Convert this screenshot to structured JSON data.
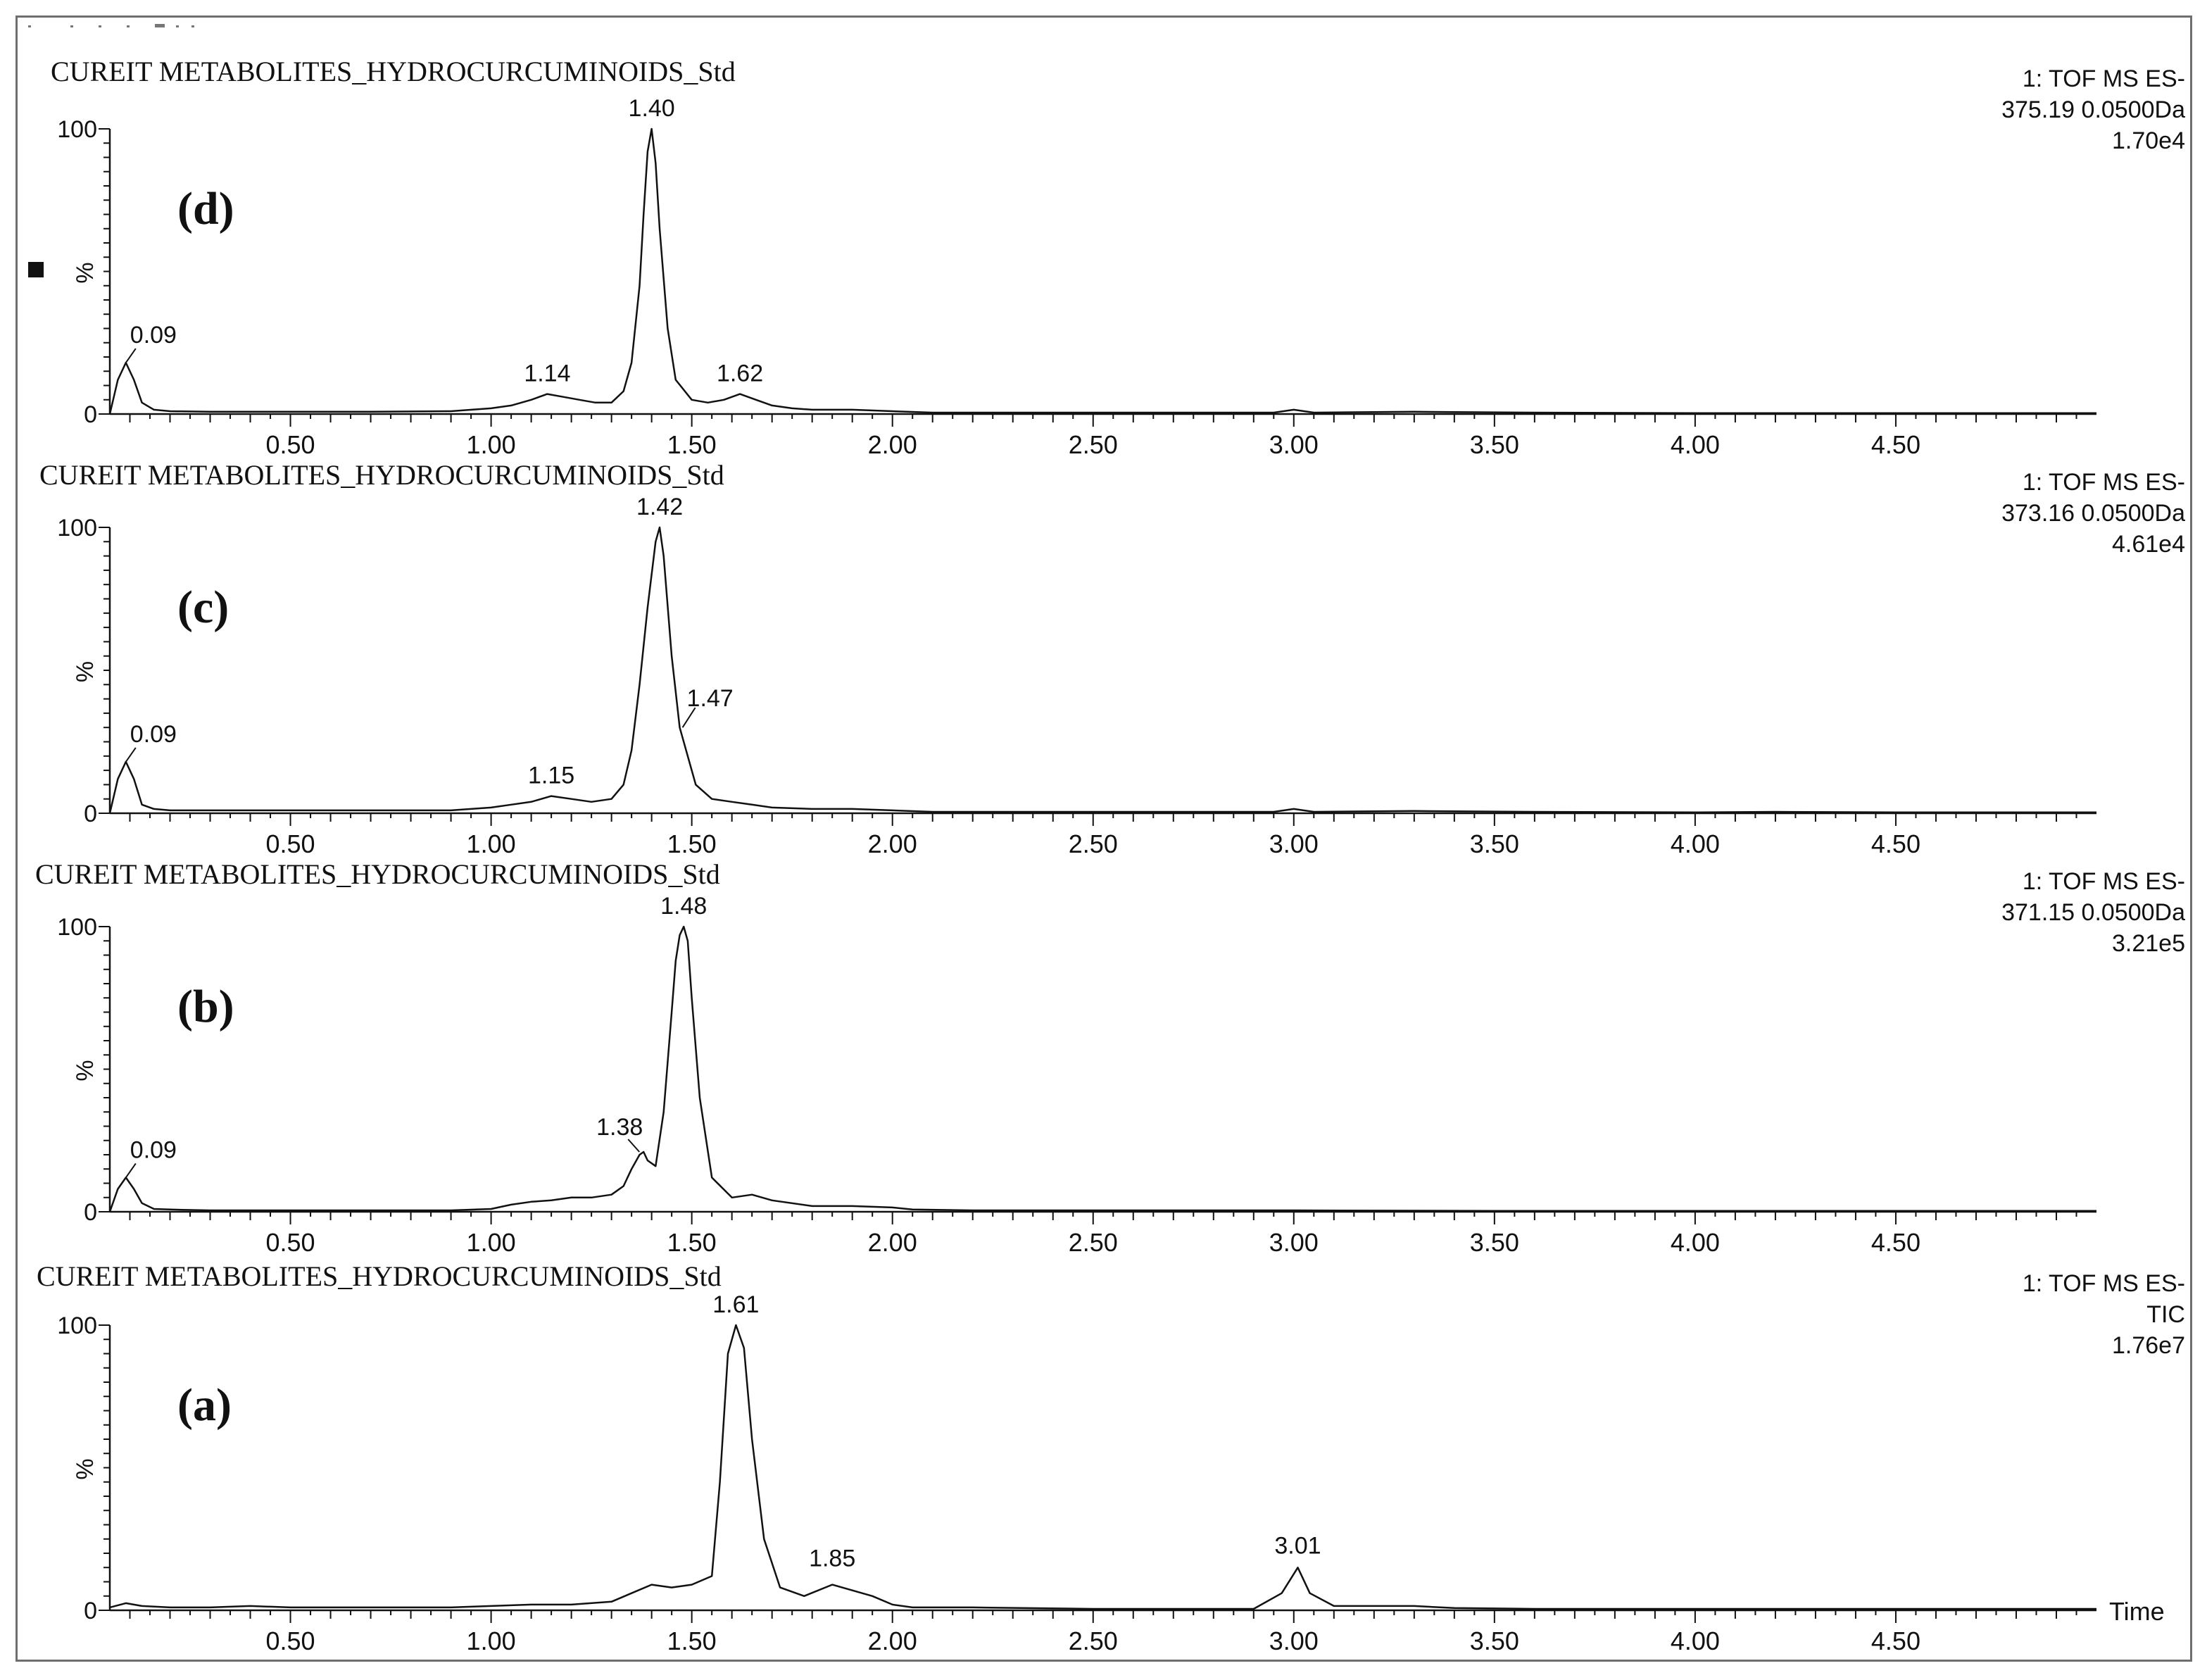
{
  "axis_text": {
    "percent": "%",
    "time": "Time"
  },
  "chart_data": [
    {
      "type": "line",
      "panel": "(d)",
      "title": "CUREIT METABOLITES_HYDROCURCUMINOIDS_Std",
      "info": [
        "1: TOF MS ES-",
        "375.19 0.0500Da",
        "1.70e4"
      ],
      "ylabel": "%",
      "xlabel": "",
      "xlim": [
        0.05,
        5.0
      ],
      "ylim": [
        0,
        100
      ],
      "xticks": [
        "0.50",
        "1.00",
        "1.50",
        "2.00",
        "2.50",
        "3.00",
        "3.50",
        "4.00",
        "4.50"
      ],
      "yticks": [
        "100",
        "0"
      ],
      "peak_labels": [
        {
          "text": "0.09",
          "x": 0.09,
          "y": 18
        },
        {
          "text": "1.14",
          "x": 1.14,
          "y": 7
        },
        {
          "text": "1.40",
          "x": 1.4,
          "y": 100
        },
        {
          "text": "1.62",
          "x": 1.62,
          "y": 7
        }
      ],
      "series": [
        {
          "x": [
            0.05,
            0.07,
            0.09,
            0.11,
            0.13,
            0.16,
            0.2,
            0.3,
            0.5,
            0.7,
            0.9,
            1.0,
            1.05,
            1.1,
            1.14,
            1.18,
            1.22,
            1.26,
            1.3,
            1.33,
            1.35,
            1.37,
            1.38,
            1.39,
            1.4,
            1.41,
            1.42,
            1.44,
            1.46,
            1.5,
            1.54,
            1.58,
            1.62,
            1.66,
            1.7,
            1.75,
            1.8,
            1.9,
            2.0,
            2.1,
            2.3,
            2.6,
            2.95,
            3.0,
            3.05,
            3.3,
            3.6,
            4.0,
            4.5,
            5.0
          ],
          "y": [
            0,
            12,
            18,
            12,
            4,
            1.5,
            1,
            0.8,
            0.8,
            0.8,
            1,
            2,
            3,
            5,
            7,
            6,
            5,
            4,
            4,
            8,
            18,
            45,
            70,
            92,
            100,
            88,
            65,
            30,
            12,
            5,
            4,
            5,
            7,
            5,
            3,
            2,
            1.5,
            1.5,
            1,
            0.5,
            0.5,
            0.5,
            0.5,
            1.5,
            0.5,
            0.8,
            0.5,
            0.3,
            0.3,
            0.3
          ]
        }
      ]
    },
    {
      "type": "line",
      "panel": "(c)",
      "title": "CUREIT METABOLITES_HYDROCURCUMINOIDS_Std",
      "info": [
        "1: TOF MS ES-",
        "373.16 0.0500Da",
        "4.61e4"
      ],
      "ylabel": "%",
      "xlabel": "",
      "xlim": [
        0.05,
        5.0
      ],
      "ylim": [
        0,
        100
      ],
      "xticks": [
        "0.50",
        "1.00",
        "1.50",
        "2.00",
        "2.50",
        "3.00",
        "3.50",
        "4.00",
        "4.50"
      ],
      "yticks": [
        "100",
        "0"
      ],
      "peak_labels": [
        {
          "text": "0.09",
          "x": 0.09,
          "y": 18
        },
        {
          "text": "1.15",
          "x": 1.15,
          "y": 6
        },
        {
          "text": "1.42",
          "x": 1.42,
          "y": 100
        },
        {
          "text": "1.47",
          "x": 1.47,
          "y": 30
        }
      ],
      "series": [
        {
          "x": [
            0.05,
            0.07,
            0.09,
            0.11,
            0.13,
            0.16,
            0.2,
            0.3,
            0.5,
            0.7,
            0.9,
            1.0,
            1.05,
            1.1,
            1.15,
            1.2,
            1.25,
            1.3,
            1.33,
            1.35,
            1.37,
            1.39,
            1.41,
            1.42,
            1.43,
            1.45,
            1.47,
            1.49,
            1.51,
            1.55,
            1.6,
            1.65,
            1.7,
            1.8,
            1.9,
            2.0,
            2.1,
            2.3,
            2.6,
            2.95,
            3.0,
            3.05,
            3.3,
            3.6,
            4.0,
            4.2,
            4.5,
            5.0
          ],
          "y": [
            0,
            12,
            18,
            12,
            3,
            1.5,
            1,
            1,
            1,
            1,
            1,
            2,
            3,
            4,
            6,
            5,
            4,
            5,
            10,
            22,
            45,
            72,
            95,
            100,
            90,
            55,
            30,
            20,
            10,
            5,
            4,
            3,
            2,
            1.5,
            1.5,
            1,
            0.5,
            0.5,
            0.5,
            0.5,
            1.5,
            0.5,
            0.8,
            0.5,
            0.3,
            0.5,
            0.3,
            0.3
          ]
        }
      ]
    },
    {
      "type": "line",
      "panel": "(b)",
      "title": "CUREIT METABOLITES_HYDROCURCUMINOIDS_Std",
      "info": [
        "1: TOF MS ES-",
        "371.15 0.0500Da",
        "3.21e5"
      ],
      "ylabel": "%",
      "xlabel": "",
      "xlim": [
        0.05,
        5.0
      ],
      "ylim": [
        0,
        100
      ],
      "xticks": [
        "0.50",
        "1.00",
        "1.50",
        "2.00",
        "2.50",
        "3.00",
        "3.50",
        "4.00",
        "4.50"
      ],
      "yticks": [
        "100",
        "0"
      ],
      "peak_labels": [
        {
          "text": "0.09",
          "x": 0.09,
          "y": 12
        },
        {
          "text": "1.38",
          "x": 1.38,
          "y": 20
        },
        {
          "text": "1.48",
          "x": 1.48,
          "y": 100
        }
      ],
      "series": [
        {
          "x": [
            0.05,
            0.07,
            0.09,
            0.11,
            0.13,
            0.16,
            0.2,
            0.3,
            0.5,
            0.7,
            0.9,
            1.0,
            1.05,
            1.1,
            1.15,
            1.2,
            1.25,
            1.3,
            1.33,
            1.35,
            1.37,
            1.38,
            1.39,
            1.41,
            1.43,
            1.45,
            1.46,
            1.47,
            1.48,
            1.49,
            1.5,
            1.52,
            1.55,
            1.6,
            1.65,
            1.7,
            1.8,
            1.9,
            2.0,
            2.05,
            2.2,
            2.6,
            3.0,
            3.5,
            4.0,
            4.5,
            5.0
          ],
          "y": [
            0,
            8,
            12,
            8,
            3,
            1,
            0.8,
            0.5,
            0.5,
            0.5,
            0.5,
            1,
            2.5,
            3.5,
            4,
            5,
            5,
            6,
            9,
            15,
            20,
            21,
            18,
            16,
            35,
            70,
            88,
            97,
            100,
            95,
            75,
            40,
            12,
            5,
            6,
            4,
            2,
            2,
            1.5,
            0.8,
            0.5,
            0.5,
            0.5,
            0.3,
            0.3,
            0.3,
            0.3
          ]
        }
      ]
    },
    {
      "type": "line",
      "panel": "(a)",
      "title": "CUREIT METABOLITES_HYDROCURCUMINOIDS_Std",
      "info": [
        "1: TOF MS ES-",
        "TIC",
        "1.76e7"
      ],
      "ylabel": "%",
      "xlabel": "Time",
      "xlim": [
        0.05,
        5.0
      ],
      "ylim": [
        0,
        100
      ],
      "xticks": [
        "0.50",
        "1.00",
        "1.50",
        "2.00",
        "2.50",
        "3.00",
        "3.50",
        "4.00",
        "4.50"
      ],
      "yticks": [
        "100",
        "0"
      ],
      "peak_labels": [
        {
          "text": "1.61",
          "x": 1.61,
          "y": 100
        },
        {
          "text": "1.85",
          "x": 1.85,
          "y": 9
        },
        {
          "text": "3.01",
          "x": 3.01,
          "y": 15
        }
      ],
      "series": [
        {
          "x": [
            0.05,
            0.09,
            0.13,
            0.2,
            0.3,
            0.4,
            0.5,
            0.7,
            0.9,
            1.0,
            1.1,
            1.2,
            1.3,
            1.35,
            1.4,
            1.45,
            1.5,
            1.55,
            1.57,
            1.59,
            1.61,
            1.63,
            1.65,
            1.68,
            1.72,
            1.78,
            1.85,
            1.9,
            1.95,
            2.0,
            2.05,
            2.2,
            2.5,
            2.9,
            2.97,
            3.01,
            3.04,
            3.1,
            3.3,
            3.4,
            3.6,
            4.0,
            4.5,
            5.0
          ],
          "y": [
            1,
            2.5,
            1.5,
            1,
            1,
            1.5,
            1,
            1,
            1,
            1.5,
            2,
            2,
            3,
            6,
            9,
            8,
            9,
            12,
            45,
            90,
            100,
            92,
            60,
            25,
            8,
            5,
            9,
            7,
            5,
            2,
            1,
            1,
            0.5,
            0.5,
            6,
            15,
            6,
            1.5,
            1.5,
            0.8,
            0.5,
            0.5,
            0.5,
            0.5
          ]
        }
      ]
    }
  ]
}
